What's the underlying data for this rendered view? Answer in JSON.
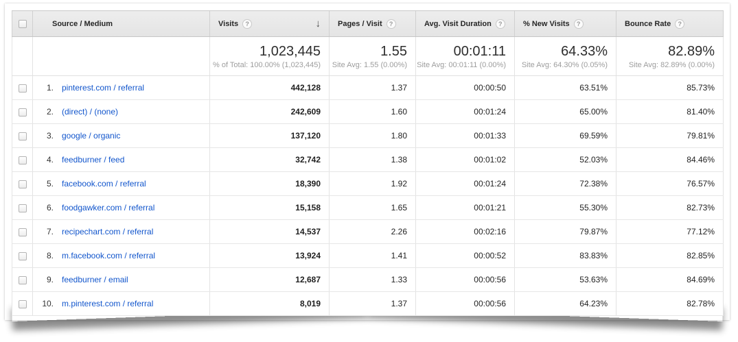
{
  "colors": {
    "link": "#1155cc",
    "header_bg": "#e8e8e8"
  },
  "icons": {
    "help": "?",
    "sort_desc": "↓"
  },
  "table": {
    "columns": [
      {
        "label": "Source / Medium",
        "has_help": false
      },
      {
        "label": "Visits",
        "has_help": true,
        "sorted": "desc"
      },
      {
        "label": "Pages / Visit",
        "has_help": true
      },
      {
        "label": "Avg. Visit Duration",
        "has_help": true
      },
      {
        "label": "% New Visits",
        "has_help": true
      },
      {
        "label": "Bounce Rate",
        "has_help": true
      }
    ],
    "summary": {
      "visits": {
        "value": "1,023,445",
        "sub": "% of Total: 100.00% (1,023,445)"
      },
      "pages": {
        "value": "1.55",
        "sub": "Site Avg: 1.55 (0.00%)"
      },
      "duration": {
        "value": "00:01:11",
        "sub": "Site Avg: 00:01:11 (0.00%)"
      },
      "new_visits": {
        "value": "64.33%",
        "sub": "Site Avg: 64.30% (0.05%)"
      },
      "bounce": {
        "value": "82.89%",
        "sub": "Site Avg: 82.89% (0.00%)"
      }
    },
    "rows": [
      {
        "rank": "1.",
        "source": "pinterest.com / referral",
        "visits": "442,128",
        "pages": "1.37",
        "duration": "00:00:50",
        "new_visits": "63.51%",
        "bounce": "85.73%"
      },
      {
        "rank": "2.",
        "source": "(direct) / (none)",
        "visits": "242,609",
        "pages": "1.60",
        "duration": "00:01:24",
        "new_visits": "65.00%",
        "bounce": "81.40%"
      },
      {
        "rank": "3.",
        "source": "google / organic",
        "visits": "137,120",
        "pages": "1.80",
        "duration": "00:01:33",
        "new_visits": "69.59%",
        "bounce": "79.81%"
      },
      {
        "rank": "4.",
        "source": "feedburner / feed",
        "visits": "32,742",
        "pages": "1.38",
        "duration": "00:01:02",
        "new_visits": "52.03%",
        "bounce": "84.46%"
      },
      {
        "rank": "5.",
        "source": "facebook.com / referral",
        "visits": "18,390",
        "pages": "1.92",
        "duration": "00:01:24",
        "new_visits": "72.38%",
        "bounce": "76.57%"
      },
      {
        "rank": "6.",
        "source": "foodgawker.com / referral",
        "visits": "15,158",
        "pages": "1.65",
        "duration": "00:01:21",
        "new_visits": "55.30%",
        "bounce": "82.73%"
      },
      {
        "rank": "7.",
        "source": "recipechart.com / referral",
        "visits": "14,537",
        "pages": "2.26",
        "duration": "00:02:16",
        "new_visits": "79.87%",
        "bounce": "77.12%"
      },
      {
        "rank": "8.",
        "source": "m.facebook.com / referral",
        "visits": "13,924",
        "pages": "1.41",
        "duration": "00:00:52",
        "new_visits": "83.83%",
        "bounce": "82.85%"
      },
      {
        "rank": "9.",
        "source": "feedburner / email",
        "visits": "12,687",
        "pages": "1.33",
        "duration": "00:00:56",
        "new_visits": "53.63%",
        "bounce": "84.69%"
      },
      {
        "rank": "10.",
        "source": "m.pinterest.com / referral",
        "visits": "8,019",
        "pages": "1.37",
        "duration": "00:00:56",
        "new_visits": "64.23%",
        "bounce": "82.78%"
      }
    ]
  }
}
